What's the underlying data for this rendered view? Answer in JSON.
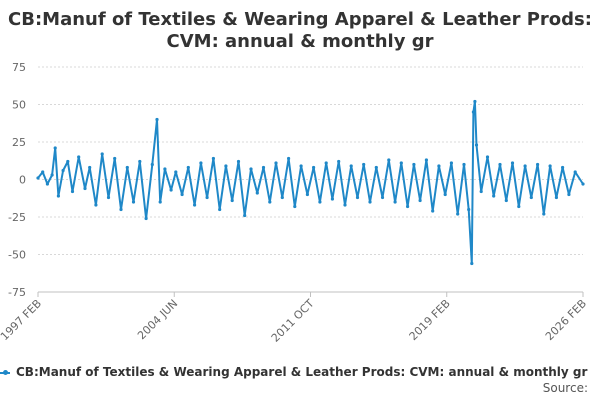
{
  "chart_data": {
    "type": "line",
    "title_line1": "CB:Manuf of Textiles & Wearing Apparel & Leather Prods:",
    "title_line2": "CVM: annual & monthly gr",
    "xlabel": "",
    "ylabel": "",
    "ylim": [
      -75,
      75
    ],
    "yticks": [
      75,
      50,
      25,
      0,
      -25,
      -50,
      -75
    ],
    "xticks": [
      "1997 FEB",
      "2004 JUN",
      "2011 OCT",
      "2019 FEB",
      "2026 FEB"
    ],
    "x_range": [
      "1997-02",
      "2026-02"
    ],
    "grid": true,
    "color": "#1f88c8",
    "series": [
      {
        "name": "CB:Manuf of Textiles & Wearing Apparel & Leather Prods: CVM: annual & monthly gr",
        "points": [
          [
            "1997-02",
            1
          ],
          [
            "1997-05",
            5
          ],
          [
            "1997-08",
            -3
          ],
          [
            "1997-11",
            3
          ],
          [
            "1998-01",
            21
          ],
          [
            "1998-03",
            -11
          ],
          [
            "1998-06",
            6
          ],
          [
            "1998-09",
            12
          ],
          [
            "1998-12",
            -8
          ],
          [
            "1999-04",
            15
          ],
          [
            "1999-08",
            -6
          ],
          [
            "1999-11",
            8
          ],
          [
            "2000-03",
            -17
          ],
          [
            "2000-07",
            17
          ],
          [
            "2000-11",
            -12
          ],
          [
            "2001-03",
            14
          ],
          [
            "2001-07",
            -20
          ],
          [
            "2001-11",
            8
          ],
          [
            "2002-03",
            -15
          ],
          [
            "2002-07",
            12
          ],
          [
            "2002-11",
            -26
          ],
          [
            "2003-03",
            10
          ],
          [
            "2003-06",
            40
          ],
          [
            "2003-08",
            -15
          ],
          [
            "2003-11",
            7
          ],
          [
            "2004-03",
            -7
          ],
          [
            "2004-06",
            5
          ],
          [
            "2004-10",
            -10
          ],
          [
            "2005-02",
            8
          ],
          [
            "2005-06",
            -17
          ],
          [
            "2005-10",
            11
          ],
          [
            "2006-02",
            -12
          ],
          [
            "2006-06",
            14
          ],
          [
            "2006-10",
            -20
          ],
          [
            "2007-02",
            9
          ],
          [
            "2007-06",
            -14
          ],
          [
            "2007-10",
            12
          ],
          [
            "2008-02",
            -24
          ],
          [
            "2008-06",
            7
          ],
          [
            "2008-10",
            -9
          ],
          [
            "2009-02",
            8
          ],
          [
            "2009-06",
            -15
          ],
          [
            "2009-10",
            11
          ],
          [
            "2010-02",
            -12
          ],
          [
            "2010-06",
            14
          ],
          [
            "2010-10",
            -18
          ],
          [
            "2011-02",
            9
          ],
          [
            "2011-06",
            -10
          ],
          [
            "2011-10",
            8
          ],
          [
            "2012-02",
            -15
          ],
          [
            "2012-06",
            11
          ],
          [
            "2012-10",
            -13
          ],
          [
            "2013-02",
            12
          ],
          [
            "2013-06",
            -17
          ],
          [
            "2013-10",
            9
          ],
          [
            "2014-02",
            -12
          ],
          [
            "2014-06",
            10
          ],
          [
            "2014-10",
            -15
          ],
          [
            "2015-02",
            8
          ],
          [
            "2015-06",
            -12
          ],
          [
            "2015-10",
            13
          ],
          [
            "2016-02",
            -15
          ],
          [
            "2016-06",
            11
          ],
          [
            "2016-10",
            -18
          ],
          [
            "2017-02",
            10
          ],
          [
            "2017-06",
            -14
          ],
          [
            "2017-10",
            13
          ],
          [
            "2018-02",
            -21
          ],
          [
            "2018-06",
            9
          ],
          [
            "2018-10",
            -10
          ],
          [
            "2019-02",
            11
          ],
          [
            "2019-06",
            -23
          ],
          [
            "2019-10",
            10
          ],
          [
            "2020-01",
            -20
          ],
          [
            "2020-03",
            -56
          ],
          [
            "2020-04",
            45
          ],
          [
            "2020-05",
            52
          ],
          [
            "2020-06",
            23
          ],
          [
            "2020-09",
            -8
          ],
          [
            "2021-01",
            15
          ],
          [
            "2021-05",
            -11
          ],
          [
            "2021-09",
            10
          ],
          [
            "2022-01",
            -14
          ],
          [
            "2022-05",
            11
          ],
          [
            "2022-09",
            -18
          ],
          [
            "2023-01",
            9
          ],
          [
            "2023-05",
            -12
          ],
          [
            "2023-09",
            10
          ],
          [
            "2024-01",
            -23
          ],
          [
            "2024-05",
            9
          ],
          [
            "2024-09",
            -12
          ],
          [
            "2025-01",
            8
          ],
          [
            "2025-05",
            -10
          ],
          [
            "2025-09",
            5
          ],
          [
            "2026-02",
            -3
          ]
        ]
      }
    ]
  },
  "source_label": "Source:"
}
